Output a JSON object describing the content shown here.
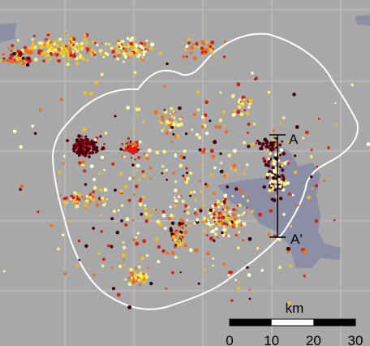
{
  "section_labels": {
    "start": "A",
    "end": "A'"
  },
  "scale_bar": {
    "unit": "km",
    "ticks": [
      "0",
      "10",
      "20",
      "30"
    ]
  }
}
